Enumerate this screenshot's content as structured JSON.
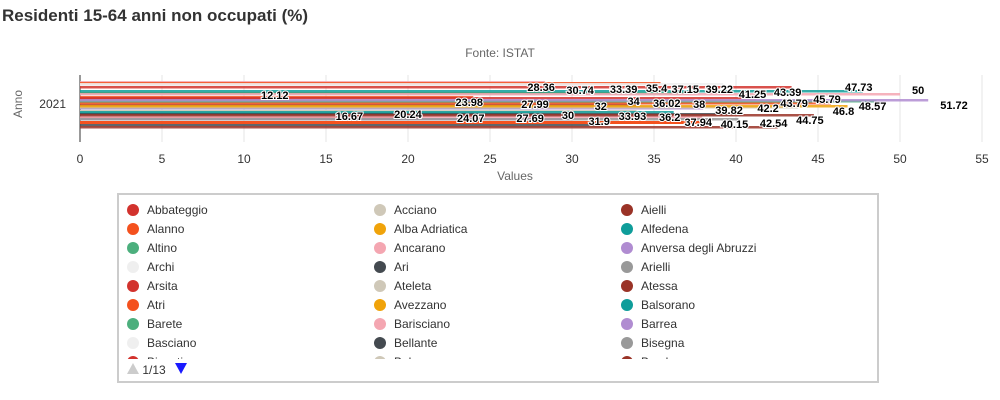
{
  "chart_data": {
    "type": "bar",
    "orientation": "horizontal",
    "title": "Residenti 15-64 anni non occupati (%)",
    "subtitle": "Fonte: ISTAT",
    "xlabel": "Values",
    "ylabel": "Anno",
    "categories": [
      "2021"
    ],
    "xlim": [
      0,
      55
    ],
    "xticks": [
      0,
      5,
      10,
      15,
      20,
      25,
      30,
      35,
      40,
      45,
      50,
      55
    ],
    "grid": true,
    "labeled_values": [
      12.12,
      16.67,
      20.24,
      23.98,
      24.07,
      27.69,
      27.99,
      28.36,
      30,
      30.74,
      31.9,
      32,
      33.39,
      33.93,
      34,
      35.4,
      36.02,
      36.2,
      37.15,
      37.94,
      38,
      39.22,
      39.82,
      40.15,
      41.25,
      42.2,
      42.54,
      43.39,
      43.79,
      44.75,
      45.79,
      46.8,
      47.73,
      48.57,
      50,
      51.72
    ],
    "legend_placement": "bottom",
    "legend": {
      "page": "1/13",
      "items": [
        {
          "name": "Abbateggio",
          "color": "#d2322d"
        },
        {
          "name": "Acciano",
          "color": "#cfc8b8"
        },
        {
          "name": "Aielli",
          "color": "#9a3327"
        },
        {
          "name": "Alanno",
          "color": "#f4511e"
        },
        {
          "name": "Alba Adriatica",
          "color": "#f0a30a"
        },
        {
          "name": "Alfedena",
          "color": "#0f9d9a"
        },
        {
          "name": "Altino",
          "color": "#4caf7d"
        },
        {
          "name": "Ancarano",
          "color": "#f4a6b1"
        },
        {
          "name": "Anversa degli Abruzzi",
          "color": "#b08cd1"
        },
        {
          "name": "Archi",
          "color": "#efefef"
        },
        {
          "name": "Ari",
          "color": "#444a50"
        },
        {
          "name": "Arielli",
          "color": "#999999"
        },
        {
          "name": "Arsita",
          "color": "#d2322d"
        },
        {
          "name": "Ateleta",
          "color": "#cfc8b8"
        },
        {
          "name": "Atessa",
          "color": "#9a3327"
        },
        {
          "name": "Atri",
          "color": "#f4511e"
        },
        {
          "name": "Avezzano",
          "color": "#f0a30a"
        },
        {
          "name": "Balsorano",
          "color": "#0f9d9a"
        },
        {
          "name": "Barete",
          "color": "#4caf7d"
        },
        {
          "name": "Barisciano",
          "color": "#f4a6b1"
        },
        {
          "name": "Barrea",
          "color": "#b08cd1"
        },
        {
          "name": "Basciano",
          "color": "#efefef"
        },
        {
          "name": "Bellante",
          "color": "#444a50"
        },
        {
          "name": "Bisegna",
          "color": "#999999"
        },
        {
          "name": "Bisenti",
          "color": "#d2322d"
        },
        {
          "name": "Bolognano",
          "color": "#cfc8b8"
        },
        {
          "name": "Bomba",
          "color": "#9a3327"
        }
      ]
    }
  }
}
